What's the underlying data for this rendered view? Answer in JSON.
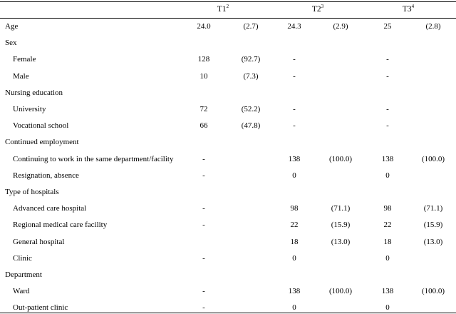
{
  "headers": [
    {
      "label": "T1",
      "sup": "2"
    },
    {
      "label": "T2",
      "sup": "3"
    },
    {
      "label": "T3",
      "sup": "4"
    }
  ],
  "rows": [
    {
      "label": "Age",
      "sub": false,
      "cells": [
        "24.0",
        "(2.7)",
        "24.3",
        "(2.9)",
        "25",
        "(2.8)"
      ]
    },
    {
      "label": "Sex",
      "sub": false,
      "cells": [
        "",
        "",
        "",
        "",
        "",
        ""
      ]
    },
    {
      "label": "Female",
      "sub": true,
      "cells": [
        "128",
        "(92.7)",
        "-",
        "",
        "-",
        ""
      ]
    },
    {
      "label": "Male",
      "sub": true,
      "cells": [
        "10",
        "(7.3)",
        "-",
        "",
        "-",
        ""
      ]
    },
    {
      "label": "Nursing education",
      "sub": false,
      "cells": [
        "",
        "",
        "",
        "",
        "",
        ""
      ]
    },
    {
      "label": "University",
      "sub": true,
      "cells": [
        "72",
        "(52.2)",
        "-",
        "",
        "-",
        ""
      ]
    },
    {
      "label": "Vocational school",
      "sub": true,
      "cells": [
        "66",
        "(47.8)",
        "-",
        "",
        "-",
        ""
      ]
    },
    {
      "label": "Continued employment",
      "sub": false,
      "cells": [
        "",
        "",
        "",
        "",
        "",
        ""
      ]
    },
    {
      "label": "Continuing to work in the same department/facility",
      "sub": true,
      "cells": [
        "-",
        "",
        "138",
        "(100.0)",
        "138",
        "(100.0)"
      ]
    },
    {
      "label": "Resignation, absence",
      "sub": true,
      "cells": [
        "-",
        "",
        "0",
        "",
        "0",
        ""
      ]
    },
    {
      "label": "Type of hospitals",
      "sub": false,
      "cells": [
        "",
        "",
        "",
        "",
        "",
        ""
      ]
    },
    {
      "label": "Advanced care hospital",
      "sub": true,
      "cells": [
        "-",
        "",
        "98",
        "(71.1)",
        "98",
        "(71.1)"
      ]
    },
    {
      "label": "Regional medical care facility",
      "sub": true,
      "cells": [
        "-",
        "",
        "22",
        "(15.9)",
        "22",
        "(15.9)"
      ]
    },
    {
      "label": "General hospital",
      "sub": true,
      "cells": [
        "",
        "",
        "18",
        "(13.0)",
        "18",
        "(13.0)"
      ]
    },
    {
      "label": "Clinic",
      "sub": true,
      "cells": [
        "-",
        "",
        "0",
        "",
        "0",
        ""
      ]
    },
    {
      "label": "Department",
      "sub": false,
      "cells": [
        "",
        "",
        "",
        "",
        "",
        ""
      ]
    },
    {
      "label": "Ward",
      "sub": true,
      "cells": [
        "-",
        "",
        "138",
        "(100.0)",
        "138",
        "(100.0)"
      ]
    },
    {
      "label": "Out-patient clinic",
      "sub": true,
      "cells": [
        "-",
        "",
        "0",
        "",
        "0",
        ""
      ]
    }
  ]
}
